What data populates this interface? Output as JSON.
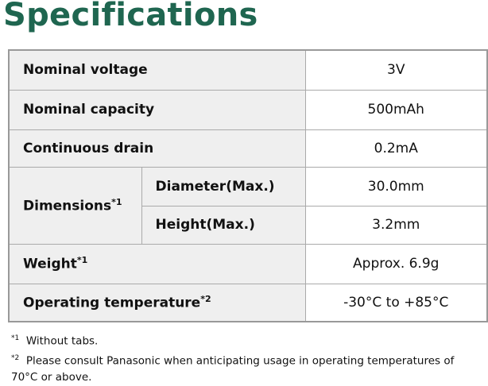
{
  "title": "Specifications",
  "table": {
    "rows": [
      {
        "label": "Nominal voltage",
        "value": "3V"
      },
      {
        "label": "Nominal capacity",
        "value": "500mAh"
      },
      {
        "label": "Continuous drain",
        "value": "0.2mA"
      },
      {
        "label": "Dimensions",
        "note": "*1",
        "sub": [
          {
            "label": "Diameter(Max.)",
            "value": "30.0mm"
          },
          {
            "label": "Height(Max.)",
            "value": "3.2mm"
          }
        ]
      },
      {
        "label": "Weight",
        "note": "*1",
        "value": "Approx. 6.9g"
      },
      {
        "label": "Operating temperature",
        "note": "*2",
        "value": "-30°C to +85°C"
      }
    ]
  },
  "footnotes": [
    {
      "mark": "*1",
      "text": "Without tabs."
    },
    {
      "mark": "*2",
      "text": "Please consult Panasonic when anticipating usage in operating temperatures of 70°C or above."
    }
  ]
}
